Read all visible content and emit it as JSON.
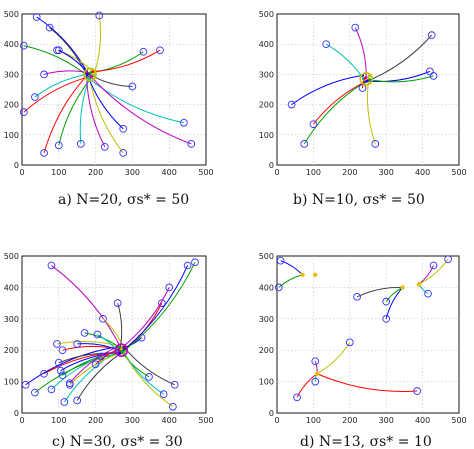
{
  "colors": {
    "start_marker": "#3333ff",
    "palette": [
      "#0000ff",
      "#00a000",
      "#ff0000",
      "#00bfbf",
      "#bf00bf",
      "#bfbf00",
      "#404040"
    ]
  },
  "chart_data": [
    {
      "type": "scatter",
      "caption": "a) N=20, σs* = 50",
      "xlim": [
        0,
        500
      ],
      "ylim": [
        0,
        500
      ],
      "xticks": [
        0,
        100,
        200,
        300,
        400,
        500
      ],
      "yticks": [
        0,
        100,
        200,
        300,
        400,
        500
      ],
      "grid": true,
      "target": [
        185,
        300
      ],
      "start_points": [
        [
          40,
          490
        ],
        [
          5,
          395
        ],
        [
          5,
          175
        ],
        [
          35,
          225
        ],
        [
          60,
          300
        ],
        [
          95,
          380
        ],
        [
          75,
          455
        ],
        [
          100,
          380
        ],
        [
          100,
          65
        ],
        [
          60,
          40
        ],
        [
          160,
          70
        ],
        [
          225,
          60
        ],
        [
          275,
          40
        ],
        [
          300,
          260
        ],
        [
          275,
          120
        ],
        [
          330,
          375
        ],
        [
          375,
          380
        ],
        [
          440,
          140
        ],
        [
          460,
          70
        ],
        [
          210,
          495
        ]
      ]
    },
    {
      "type": "scatter",
      "caption": "b) N=10, σs* = 50",
      "xlim": [
        0,
        500
      ],
      "ylim": [
        0,
        500
      ],
      "xticks": [
        0,
        100,
        200,
        300,
        400,
        500
      ],
      "yticks": [
        0,
        100,
        200,
        300,
        400,
        500
      ],
      "grid": true,
      "target": [
        245,
        285
      ],
      "start_points": [
        [
          40,
          200
        ],
        [
          75,
          70
        ],
        [
          100,
          135
        ],
        [
          135,
          400
        ],
        [
          215,
          455
        ],
        [
          270,
          70
        ],
        [
          425,
          430
        ],
        [
          420,
          310
        ],
        [
          430,
          295
        ],
        [
          235,
          255
        ]
      ]
    },
    {
      "type": "scatter",
      "caption": "c) N=30, σs* = 30",
      "xlim": [
        0,
        500
      ],
      "ylim": [
        0,
        500
      ],
      "xticks": [
        0,
        100,
        200,
        300,
        400,
        500
      ],
      "yticks": [
        0,
        100,
        200,
        300,
        400,
        500
      ],
      "grid": true,
      "target": [
        270,
        200
      ],
      "start_points": [
        [
          10,
          90
        ],
        [
          35,
          65
        ],
        [
          60,
          125
        ],
        [
          80,
          75
        ],
        [
          80,
          470
        ],
        [
          95,
          220
        ],
        [
          100,
          160
        ],
        [
          105,
          135
        ],
        [
          110,
          120
        ],
        [
          110,
          200
        ],
        [
          115,
          35
        ],
        [
          130,
          95
        ],
        [
          130,
          90
        ],
        [
          150,
          40
        ],
        [
          150,
          220
        ],
        [
          170,
          255
        ],
        [
          200,
          155
        ],
        [
          205,
          250
        ],
        [
          215,
          180
        ],
        [
          220,
          300
        ],
        [
          260,
          350
        ],
        [
          325,
          240
        ],
        [
          345,
          115
        ],
        [
          380,
          350
        ],
        [
          385,
          60
        ],
        [
          400,
          400
        ],
        [
          410,
          20
        ],
        [
          415,
          90
        ],
        [
          450,
          470
        ],
        [
          470,
          480
        ]
      ]
    },
    {
      "type": "scatter",
      "caption": "d) N=13, σs* = 10",
      "xlim": [
        0,
        500
      ],
      "ylim": [
        0,
        500
      ],
      "xticks": [
        0,
        100,
        200,
        300,
        400,
        500
      ],
      "yticks": [
        0,
        100,
        200,
        300,
        400,
        500
      ],
      "grid": true,
      "start_points": [
        [
          10,
          485
        ],
        [
          5,
          400
        ],
        [
          55,
          50
        ],
        [
          105,
          100
        ],
        [
          105,
          165
        ],
        [
          200,
          225
        ],
        [
          220,
          370
        ],
        [
          300,
          300
        ],
        [
          300,
          355
        ],
        [
          385,
          70
        ],
        [
          415,
          380
        ],
        [
          430,
          470
        ],
        [
          470,
          490
        ]
      ],
      "meeting_points": [
        [
          70,
          440
        ],
        [
          105,
          440
        ],
        [
          110,
          125
        ],
        [
          345,
          400
        ],
        [
          390,
          410
        ]
      ]
    }
  ]
}
